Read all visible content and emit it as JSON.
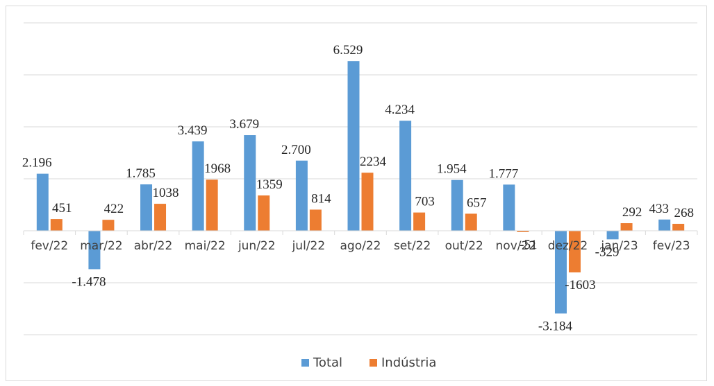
{
  "chart_data": {
    "type": "bar",
    "categories": [
      "fev/22",
      "mar/22",
      "abr/22",
      "mai/22",
      "jun/22",
      "jul/22",
      "ago/22",
      "set/22",
      "out/22",
      "nov/22",
      "dez/22",
      "jan/23",
      "fev/23"
    ],
    "series": [
      {
        "name": "Total",
        "color": "#5b9bd5",
        "values": [
          2196,
          -1478,
          1785,
          3439,
          3679,
          2700,
          6529,
          4234,
          1954,
          1777,
          -3184,
          -329,
          433
        ],
        "labels": [
          "2.196",
          "-1.478",
          "1.785",
          "3.439",
          "3.679",
          "2.700",
          "6.529",
          "4.234",
          "1.954",
          "1.777",
          "-3.184",
          "-329",
          "433"
        ]
      },
      {
        "name": "Indústria",
        "color": "#ed7d31",
        "values": [
          451,
          422,
          1038,
          1968,
          1359,
          814,
          2234,
          703,
          657,
          -51,
          -1603,
          292,
          268
        ],
        "labels": [
          "451",
          "422",
          "1038",
          "1968",
          "1359",
          "814",
          "2234",
          "703",
          "657",
          "-51",
          "-1603",
          "292",
          "268"
        ]
      }
    ],
    "ylim": [
      -4000,
      8000
    ],
    "gridlines": [
      -4000,
      -2000,
      0,
      2000,
      4000,
      6000,
      8000
    ],
    "grid": true,
    "legend_position": "bottom",
    "title": "",
    "xlabel": "",
    "ylabel": ""
  }
}
